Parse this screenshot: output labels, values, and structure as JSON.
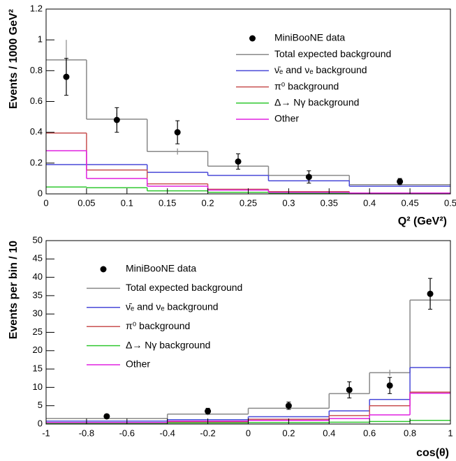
{
  "chart_data": [
    {
      "type": "histogram",
      "x_label": "Q² (GeV²)",
      "y_label": "Events / 1000 GeV²",
      "bins": [
        0,
        0.05,
        0.125,
        0.2,
        0.275,
        0.375,
        0.5
      ],
      "xlim": [
        0,
        0.5
      ],
      "ylim": [
        0,
        1.2
      ],
      "xticks": [
        0,
        0.05,
        0.1,
        0.15,
        0.2,
        0.25,
        0.3,
        0.35,
        0.4,
        0.45,
        0.5
      ],
      "yticks": [
        0,
        0.2,
        0.4,
        0.6,
        0.8,
        1,
        1.2
      ],
      "data_points": {
        "name": "MiniBooNE data",
        "color": "#000000",
        "x": [
          0.025,
          0.0875,
          0.1625,
          0.2375,
          0.325,
          0.4375
        ],
        "values": [
          0.76,
          0.48,
          0.4,
          0.21,
          0.11,
          0.08
        ],
        "errors": [
          0.12,
          0.08,
          0.075,
          0.05,
          0.04,
          0.02
        ]
      },
      "series": [
        {
          "name": "Total expected background",
          "color": "#888888",
          "values": [
            0.87,
            0.485,
            0.275,
            0.18,
            0.12,
            0.06
          ],
          "errors": [
            0.13,
            0.04,
            0.02,
            0.015,
            0.01,
            0.006
          ]
        },
        {
          "name": "ν̄ₑ and νₑ background",
          "color": "#4848d8",
          "values": [
            0.19,
            0.19,
            0.14,
            0.12,
            0.085,
            0.05
          ]
        },
        {
          "name": "π⁰ background",
          "color": "#c85050",
          "values": [
            0.395,
            0.155,
            0.065,
            0.03,
            0.015,
            0.005
          ]
        },
        {
          "name": "Δ→ Nγ background",
          "color": "#30c830",
          "values": [
            0.045,
            0.04,
            0.02,
            0.01,
            0.005,
            0.003
          ]
        },
        {
          "name": "Other",
          "color": "#e020e0",
          "values": [
            0.28,
            0.1,
            0.05,
            0.025,
            0.01,
            0.005
          ]
        }
      ]
    },
    {
      "type": "histogram",
      "x_label": "cos(θ)",
      "y_label": "Events per bin / 10",
      "bins": [
        -1,
        -0.4,
        0,
        0.4,
        0.6,
        0.8,
        1
      ],
      "xlim": [
        -1,
        1
      ],
      "ylim": [
        0,
        50
      ],
      "xticks": [
        -1,
        -0.8,
        -0.6,
        -0.4,
        -0.2,
        0,
        0.2,
        0.4,
        0.6,
        0.8,
        1
      ],
      "yticks": [
        0,
        5,
        10,
        15,
        20,
        25,
        30,
        35,
        40,
        45,
        50
      ],
      "data_points": {
        "name": "MiniBooNE data",
        "color": "#000000",
        "x": [
          -0.7,
          -0.2,
          0.2,
          0.5,
          0.7,
          0.9
        ],
        "values": [
          2.1,
          3.5,
          5,
          9.3,
          10.5,
          35.5
        ],
        "errors": [
          0.4,
          0.8,
          1,
          2.2,
          2.2,
          4.2
        ]
      },
      "series": [
        {
          "name": "Total expected background",
          "color": "#888888",
          "values": [
            1.5,
            2.7,
            4.3,
            8.3,
            14,
            33.8
          ],
          "errors": [
            0.2,
            0.3,
            0.4,
            0.6,
            0.8,
            1.5
          ]
        },
        {
          "name": "ν̄ₑ and νₑ background",
          "color": "#4848d8",
          "values": [
            0.8,
            1.2,
            2,
            3.6,
            6.7,
            15.4
          ]
        },
        {
          "name": "π⁰ background",
          "color": "#c85050",
          "values": [
            0.3,
            0.6,
            1.3,
            2.3,
            5,
            8.7
          ]
        },
        {
          "name": "Δ→ Nγ background",
          "color": "#30c830",
          "values": [
            0.2,
            0.3,
            0.4,
            0.5,
            0.7,
            1
          ]
        },
        {
          "name": "Other",
          "color": "#e020e0",
          "values": [
            0.4,
            0.8,
            1,
            1.5,
            2.5,
            8.4
          ]
        }
      ]
    }
  ]
}
